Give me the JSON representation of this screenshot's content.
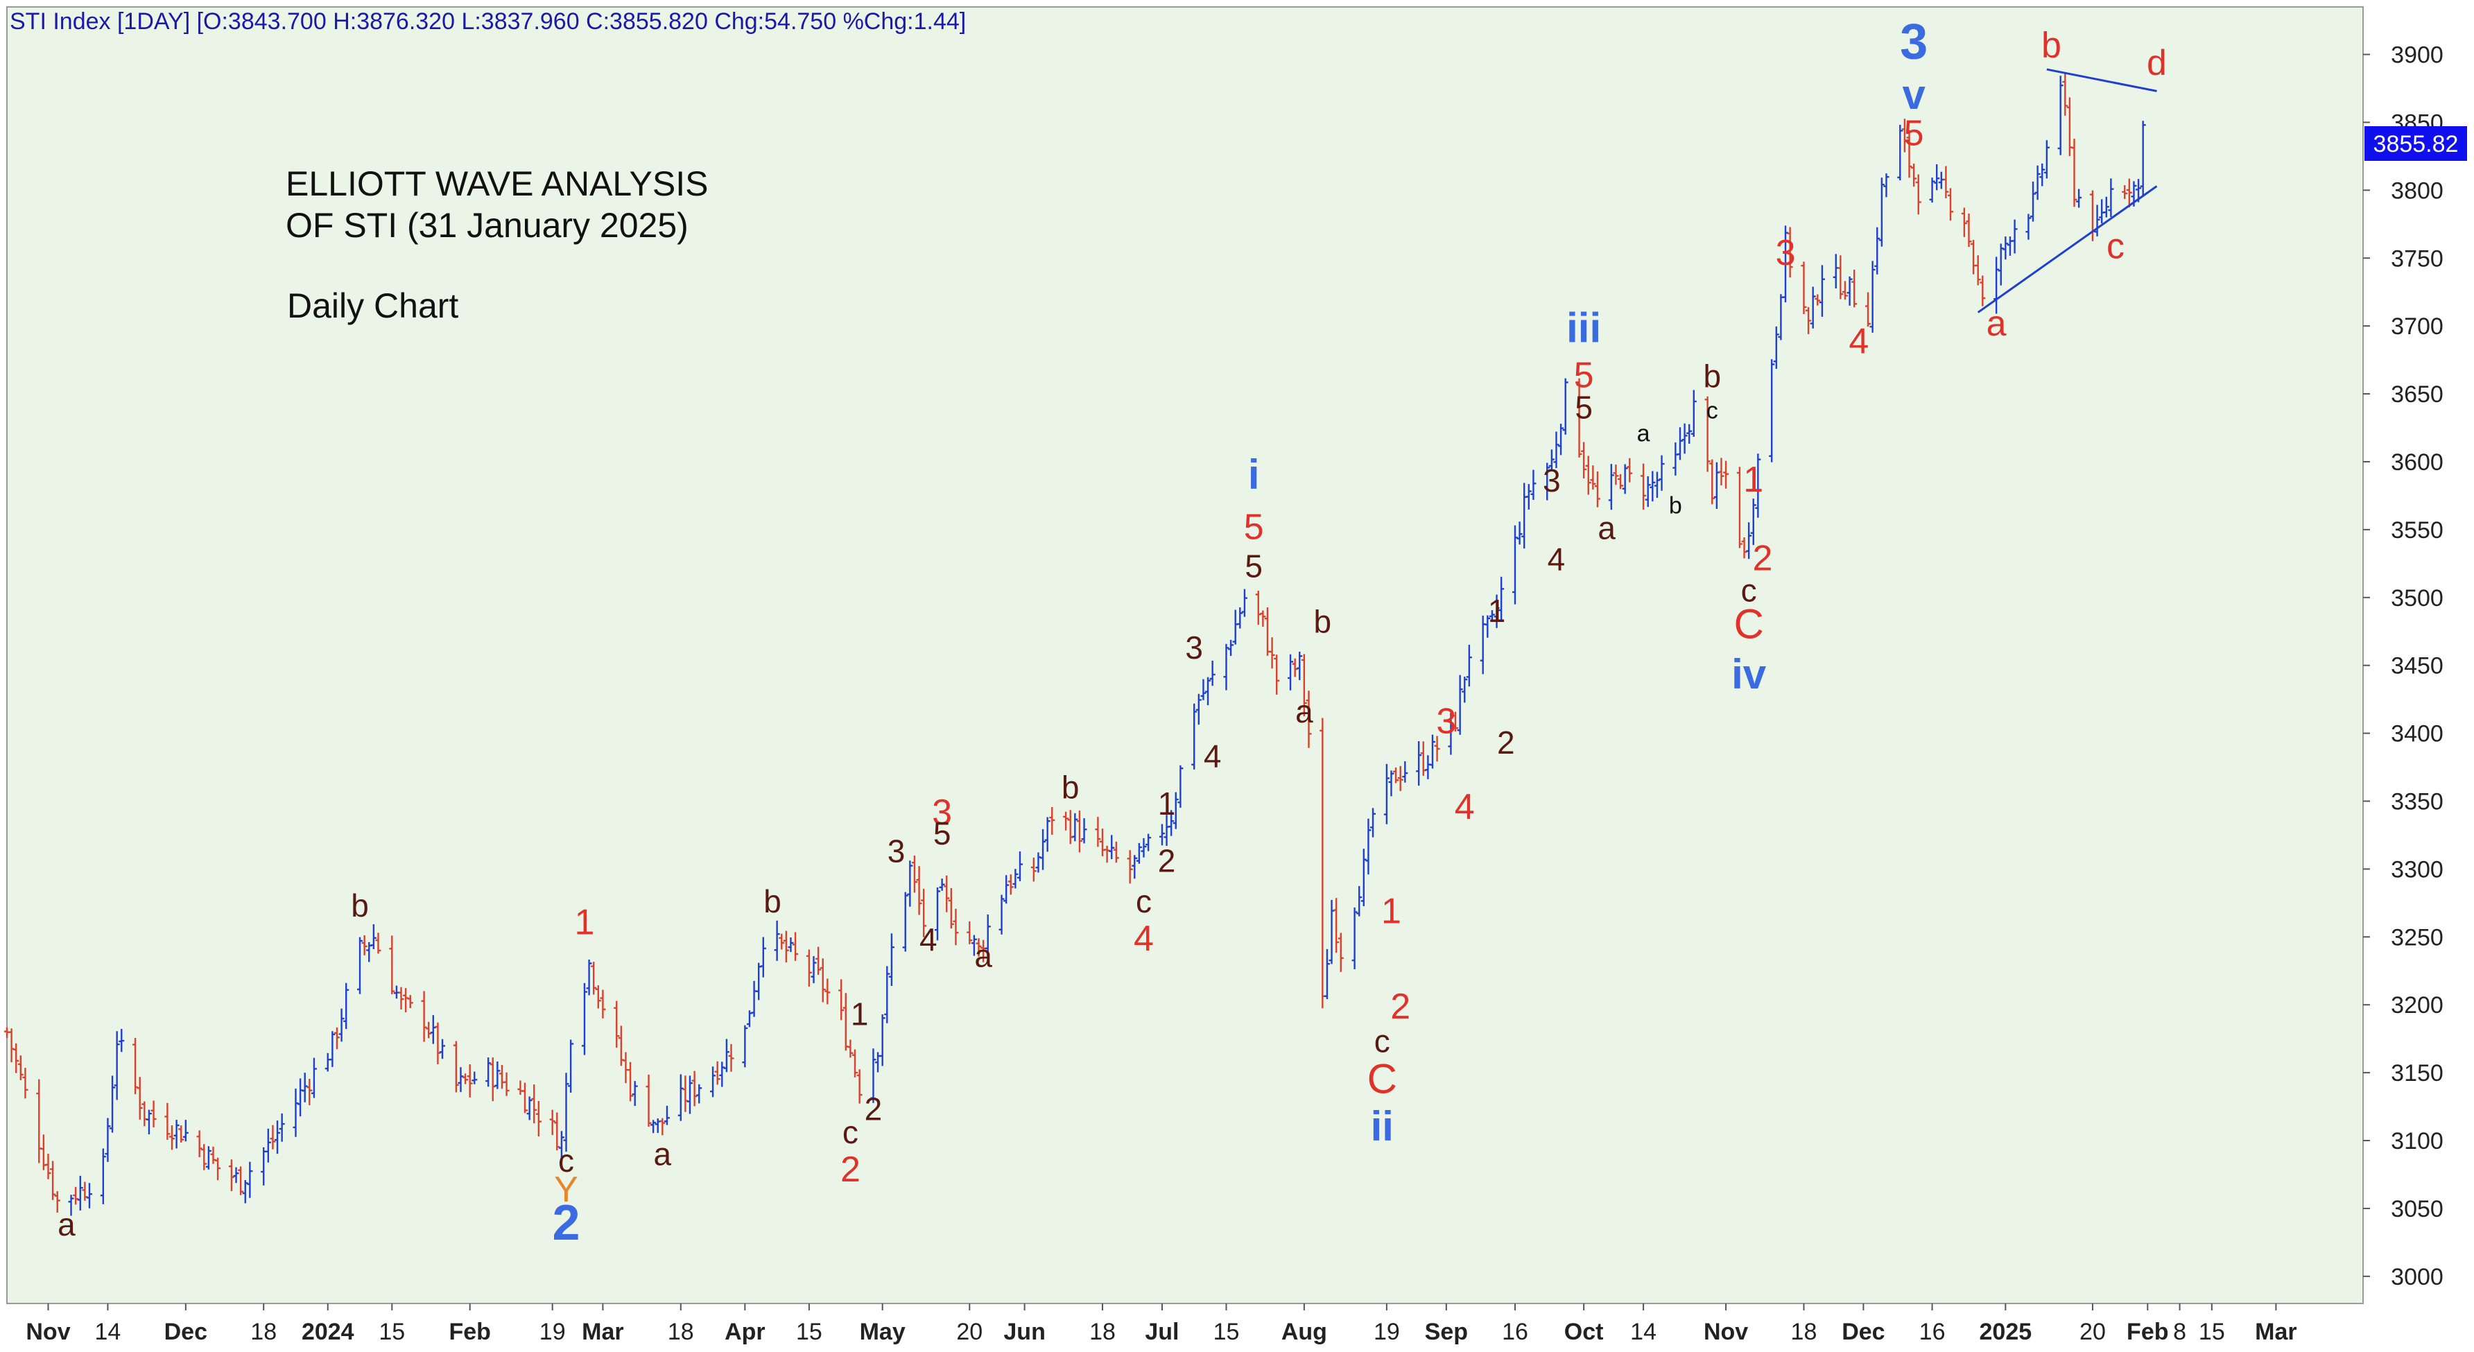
{
  "header": {
    "ohlc_text": "STI Index [1DAY] [O:3843.700 H:3876.320 L:3837.960 C:3855.820 Chg:54.750 %Chg:1.44]"
  },
  "annotation": {
    "line1": "ELLIOTT WAVE ANALYSIS",
    "line2": "OF STI (31 January 2025)",
    "line3": "Daily Chart"
  },
  "last_price_label": "3855.82",
  "colors": {
    "plot_bg": "#eaf5e7",
    "up_bar": "#1f3fd0",
    "down_bar": "#d9412f",
    "wave_blue": "#3a6be0",
    "wave_red": "#e0322a",
    "wave_brown": "#5a1a12",
    "wave_orange": "#e8862a",
    "trendline": "#1f3fd0",
    "price_tag_bg": "#1010ee"
  },
  "chart_data": {
    "type": "ohlc",
    "title": "STI Index [1DAY]",
    "ylim": [
      2980,
      3935
    ],
    "xlim": [
      "2023-10-23",
      "2025-03-20"
    ],
    "y_ticks": [
      3000,
      3050,
      3100,
      3150,
      3200,
      3250,
      3300,
      3350,
      3400,
      3450,
      3500,
      3550,
      3600,
      3650,
      3700,
      3750,
      3800,
      3850,
      3900
    ],
    "x_ticks": [
      {
        "date": "2023-11-01",
        "label": "Nov",
        "bold": true
      },
      {
        "date": "2023-11-14",
        "label": "14",
        "bold": false
      },
      {
        "date": "2023-12-01",
        "label": "Dec",
        "bold": true
      },
      {
        "date": "2023-12-18",
        "label": "18",
        "bold": false
      },
      {
        "date": "2024-01-01",
        "label": "2024",
        "bold": true
      },
      {
        "date": "2024-01-15",
        "label": "15",
        "bold": false
      },
      {
        "date": "2024-02-01",
        "label": "Feb",
        "bold": true
      },
      {
        "date": "2024-02-19",
        "label": "19",
        "bold": false
      },
      {
        "date": "2024-03-01",
        "label": "Mar",
        "bold": true
      },
      {
        "date": "2024-03-18",
        "label": "18",
        "bold": false
      },
      {
        "date": "2024-04-01",
        "label": "Apr",
        "bold": true
      },
      {
        "date": "2024-04-15",
        "label": "15",
        "bold": false
      },
      {
        "date": "2024-05-01",
        "label": "May",
        "bold": true
      },
      {
        "date": "2024-05-20",
        "label": "20",
        "bold": false
      },
      {
        "date": "2024-06-01",
        "label": "Jun",
        "bold": true
      },
      {
        "date": "2024-06-18",
        "label": "18",
        "bold": false
      },
      {
        "date": "2024-07-01",
        "label": "Jul",
        "bold": true
      },
      {
        "date": "2024-07-15",
        "label": "15",
        "bold": false
      },
      {
        "date": "2024-08-01",
        "label": "Aug",
        "bold": true
      },
      {
        "date": "2024-08-19",
        "label": "19",
        "bold": false
      },
      {
        "date": "2024-09-01",
        "label": "Sep",
        "bold": true
      },
      {
        "date": "2024-09-16",
        "label": "16",
        "bold": false
      },
      {
        "date": "2024-10-01",
        "label": "Oct",
        "bold": true
      },
      {
        "date": "2024-10-14",
        "label": "14",
        "bold": false
      },
      {
        "date": "2024-11-01",
        "label": "Nov",
        "bold": true
      },
      {
        "date": "2024-11-18",
        "label": "18",
        "bold": false
      },
      {
        "date": "2024-12-01",
        "label": "Dec",
        "bold": true
      },
      {
        "date": "2024-12-16",
        "label": "16",
        "bold": false
      },
      {
        "date": "2025-01-01",
        "label": "2025",
        "bold": true
      },
      {
        "date": "2025-01-20",
        "label": "20",
        "bold": false
      },
      {
        "date": "2025-02-01",
        "label": "Feb",
        "bold": true
      },
      {
        "date": "2025-02-08",
        "label": "8",
        "bold": false
      },
      {
        "date": "2025-02-15",
        "label": "15",
        "bold": false
      },
      {
        "date": "2025-03-01",
        "label": "Mar",
        "bold": true
      }
    ],
    "price_path": [
      [
        "2023-10-23",
        3180
      ],
      [
        "2023-10-30",
        3100
      ],
      [
        "2023-11-03",
        3055
      ],
      [
        "2023-11-09",
        3065
      ],
      [
        "2023-11-13",
        3080
      ],
      [
        "2023-11-16",
        3175
      ],
      [
        "2023-11-22",
        3120
      ],
      [
        "2023-12-01",
        3105
      ],
      [
        "2023-12-08",
        3080
      ],
      [
        "2023-12-13",
        3070
      ],
      [
        "2023-12-20",
        3100
      ],
      [
        "2023-12-27",
        3140
      ],
      [
        "2024-01-02",
        3170
      ],
      [
        "2024-01-08",
        3240
      ],
      [
        "2024-01-11",
        3250
      ],
      [
        "2024-01-17",
        3200
      ],
      [
        "2024-01-22",
        3190
      ],
      [
        "2024-01-29",
        3140
      ],
      [
        "2024-02-05",
        3150
      ],
      [
        "2024-02-12",
        3135
      ],
      [
        "2024-02-16",
        3120
      ],
      [
        "2024-02-21",
        3100
      ],
      [
        "2024-02-23",
        3180
      ],
      [
        "2024-02-27",
        3230
      ],
      [
        "2024-03-01",
        3200
      ],
      [
        "2024-03-07",
        3140
      ],
      [
        "2024-03-13",
        3110
      ],
      [
        "2024-03-18",
        3130
      ],
      [
        "2024-03-25",
        3150
      ],
      [
        "2024-04-01",
        3180
      ],
      [
        "2024-04-05",
        3250
      ],
      [
        "2024-04-10",
        3240
      ],
      [
        "2024-04-17",
        3220
      ],
      [
        "2024-04-22",
        3190
      ],
      [
        "2024-04-26",
        3140
      ],
      [
        "2024-04-30",
        3170
      ],
      [
        "2024-05-03",
        3240
      ],
      [
        "2024-05-07",
        3300
      ],
      [
        "2024-05-10",
        3260
      ],
      [
        "2024-05-14",
        3280
      ],
      [
        "2024-05-17",
        3260
      ],
      [
        "2024-05-22",
        3240
      ],
      [
        "2024-05-28",
        3290
      ],
      [
        "2024-06-03",
        3300
      ],
      [
        "2024-06-07",
        3340
      ],
      [
        "2024-06-12",
        3330
      ],
      [
        "2024-06-19",
        3310
      ],
      [
        "2024-06-24",
        3300
      ],
      [
        "2024-06-28",
        3315
      ],
      [
        "2024-07-03",
        3340
      ],
      [
        "2024-07-08",
        3420
      ],
      [
        "2024-07-12",
        3440
      ],
      [
        "2024-07-16",
        3470
      ],
      [
        "2024-07-19",
        3500
      ],
      [
        "2024-07-23",
        3480
      ],
      [
        "2024-07-26",
        3440
      ],
      [
        "2024-07-31",
        3450
      ],
      [
        "2024-08-02",
        3400
      ],
      [
        "2024-08-05",
        3200
      ],
      [
        "2024-08-07",
        3270
      ],
      [
        "2024-08-09",
        3240
      ],
      [
        "2024-08-14",
        3300
      ],
      [
        "2024-08-16",
        3340
      ],
      [
        "2024-08-21",
        3370
      ],
      [
        "2024-08-27",
        3380
      ],
      [
        "2024-08-30",
        3390
      ],
      [
        "2024-09-03",
        3410
      ],
      [
        "2024-09-06",
        3460
      ],
      [
        "2024-09-11",
        3480
      ],
      [
        "2024-09-16",
        3540
      ],
      [
        "2024-09-19",
        3580
      ],
      [
        "2024-09-24",
        3600
      ],
      [
        "2024-09-27",
        3650
      ],
      [
        "2024-10-01",
        3600
      ],
      [
        "2024-10-04",
        3570
      ],
      [
        "2024-10-09",
        3590
      ],
      [
        "2024-10-15",
        3580
      ],
      [
        "2024-10-21",
        3600
      ],
      [
        "2024-10-25",
        3640
      ],
      [
        "2024-10-29",
        3580
      ],
      [
        "2024-11-01",
        3590
      ],
      [
        "2024-11-05",
        3530
      ],
      [
        "2024-11-08",
        3600
      ],
      [
        "2024-11-12",
        3700
      ],
      [
        "2024-11-14",
        3760
      ],
      [
        "2024-11-19",
        3700
      ],
      [
        "2024-11-22",
        3740
      ],
      [
        "2024-11-27",
        3730
      ],
      [
        "2024-12-02",
        3710
      ],
      [
        "2024-12-05",
        3800
      ],
      [
        "2024-12-09",
        3840
      ],
      [
        "2024-12-13",
        3800
      ],
      [
        "2024-12-18",
        3800
      ],
      [
        "2024-12-23",
        3780
      ],
      [
        "2024-12-27",
        3715
      ],
      [
        "2025-01-02",
        3770
      ],
      [
        "2025-01-07",
        3790
      ],
      [
        "2025-01-10",
        3830
      ],
      [
        "2025-01-13",
        3880
      ],
      [
        "2025-01-16",
        3800
      ],
      [
        "2025-01-21",
        3770
      ],
      [
        "2025-01-24",
        3800
      ],
      [
        "2025-01-28",
        3805
      ],
      [
        "2025-01-30",
        3800
      ],
      [
        "2025-01-31",
        3856
      ]
    ],
    "trendlines": [
      {
        "from": [
          "2025-01-10",
          3889
        ],
        "to": [
          "2025-02-03",
          3873
        ]
      },
      {
        "from": [
          "2024-12-26",
          3710
        ],
        "to": [
          "2025-02-03",
          3803
        ]
      }
    ],
    "wave_labels": [
      {
        "text": "a",
        "date": "2023-11-05",
        "price": 3030,
        "color": "brown",
        "size": 46
      },
      {
        "text": "b",
        "date": "2024-01-08",
        "price": 3265,
        "color": "brown",
        "size": 46
      },
      {
        "text": "c",
        "date": "2024-02-22",
        "price": 3077,
        "color": "brown",
        "size": 46
      },
      {
        "text": "Y",
        "date": "2024-02-22",
        "price": 3055,
        "color": "orange",
        "size": 52
      },
      {
        "text": "2",
        "date": "2024-02-22",
        "price": 3027,
        "color": "blue",
        "size": 72,
        "bold": true
      },
      {
        "text": "1",
        "date": "2024-02-26",
        "price": 3252,
        "color": "red",
        "size": 52
      },
      {
        "text": "a",
        "date": "2024-03-14",
        "price": 3082,
        "color": "brown",
        "size": 46
      },
      {
        "text": "b",
        "date": "2024-04-07",
        "price": 3268,
        "color": "brown",
        "size": 46
      },
      {
        "text": "1",
        "date": "2024-04-26",
        "price": 3185,
        "color": "brown",
        "size": 46
      },
      {
        "text": "2",
        "date": "2024-04-29",
        "price": 3115,
        "color": "brown",
        "size": 46
      },
      {
        "text": "c",
        "date": "2024-04-24",
        "price": 3098,
        "color": "brown",
        "size": 46
      },
      {
        "text": "2",
        "date": "2024-04-24",
        "price": 3070,
        "color": "red",
        "size": 52
      },
      {
        "text": "3",
        "date": "2024-05-04",
        "price": 3305,
        "color": "brown",
        "size": 46
      },
      {
        "text": "4",
        "date": "2024-05-11",
        "price": 3240,
        "color": "brown",
        "size": 46
      },
      {
        "text": "3",
        "date": "2024-05-14",
        "price": 3333,
        "color": "red",
        "size": 52
      },
      {
        "text": "5",
        "date": "2024-05-14",
        "price": 3318,
        "color": "brown",
        "size": 46
      },
      {
        "text": "a",
        "date": "2024-05-23",
        "price": 3228,
        "color": "brown",
        "size": 46
      },
      {
        "text": "b",
        "date": "2024-06-11",
        "price": 3352,
        "color": "brown",
        "size": 46
      },
      {
        "text": "c",
        "date": "2024-06-27",
        "price": 3268,
        "color": "brown",
        "size": 46
      },
      {
        "text": "4",
        "date": "2024-06-27",
        "price": 3240,
        "color": "red",
        "size": 52
      },
      {
        "text": "1",
        "date": "2024-07-02",
        "price": 3340,
        "color": "brown",
        "size": 46
      },
      {
        "text": "2",
        "date": "2024-07-02",
        "price": 3298,
        "color": "brown",
        "size": 46
      },
      {
        "text": "3",
        "date": "2024-07-08",
        "price": 3455,
        "color": "brown",
        "size": 46
      },
      {
        "text": "4",
        "date": "2024-07-12",
        "price": 3375,
        "color": "brown",
        "size": 46
      },
      {
        "text": "i",
        "date": "2024-07-21",
        "price": 3580,
        "color": "blue",
        "size": 60,
        "bold": true
      },
      {
        "text": "5",
        "date": "2024-07-21",
        "price": 3543,
        "color": "red",
        "size": 52
      },
      {
        "text": "5",
        "date": "2024-07-21",
        "price": 3515,
        "color": "brown",
        "size": 46
      },
      {
        "text": "a",
        "date": "2024-08-01",
        "price": 3408,
        "color": "brown",
        "size": 46
      },
      {
        "text": "b",
        "date": "2024-08-05",
        "price": 3474,
        "color": "brown",
        "size": 46
      },
      {
        "text": "c",
        "date": "2024-08-18",
        "price": 3165,
        "color": "brown",
        "size": 46
      },
      {
        "text": "C",
        "date": "2024-08-18",
        "price": 3135,
        "color": "red",
        "size": 60
      },
      {
        "text": "ii",
        "date": "2024-08-18",
        "price": 3100,
        "color": "blue",
        "size": 60,
        "bold": true
      },
      {
        "text": "1",
        "date": "2024-08-20",
        "price": 3260,
        "color": "red",
        "size": 52
      },
      {
        "text": "2",
        "date": "2024-08-22",
        "price": 3190,
        "color": "red",
        "size": 52
      },
      {
        "text": "3",
        "date": "2024-09-01",
        "price": 3400,
        "color": "red",
        "size": 52
      },
      {
        "text": "4",
        "date": "2024-09-05",
        "price": 3337,
        "color": "red",
        "size": 52
      },
      {
        "text": "1",
        "date": "2024-09-12",
        "price": 3482,
        "color": "brown",
        "size": 46
      },
      {
        "text": "2",
        "date": "2024-09-14",
        "price": 3385,
        "color": "brown",
        "size": 46
      },
      {
        "text": "3",
        "date": "2024-09-24",
        "price": 3578,
        "color": "brown",
        "size": 46
      },
      {
        "text": "4",
        "date": "2024-09-25",
        "price": 3520,
        "color": "brown",
        "size": 46
      },
      {
        "text": "iii",
        "date": "2024-10-01",
        "price": 3688,
        "color": "blue",
        "size": 60,
        "bold": true
      },
      {
        "text": "5",
        "date": "2024-10-01",
        "price": 3655,
        "color": "red",
        "size": 52
      },
      {
        "text": "5",
        "date": "2024-10-01",
        "price": 3632,
        "color": "brown",
        "size": 46
      },
      {
        "text": "a",
        "date": "2024-10-06",
        "price": 3543,
        "color": "brown",
        "size": 46
      },
      {
        "text": "a",
        "date": "2024-10-14",
        "price": 3615,
        "color": "black",
        "size": 34
      },
      {
        "text": "b",
        "date": "2024-10-21",
        "price": 3562,
        "color": "black",
        "size": 34
      },
      {
        "text": "b",
        "date": "2024-10-29",
        "price": 3655,
        "color": "brown",
        "size": 46
      },
      {
        "text": "c",
        "date": "2024-10-29",
        "price": 3632,
        "color": "black",
        "size": 34
      },
      {
        "text": "1",
        "date": "2024-11-07",
        "price": 3578,
        "color": "red",
        "size": 52
      },
      {
        "text": "2",
        "date": "2024-11-09",
        "price": 3520,
        "color": "red",
        "size": 52
      },
      {
        "text": "c",
        "date": "2024-11-06",
        "price": 3497,
        "color": "brown",
        "size": 46
      },
      {
        "text": "C",
        "date": "2024-11-06",
        "price": 3470,
        "color": "red",
        "size": 60
      },
      {
        "text": "iv",
        "date": "2024-11-06",
        "price": 3433,
        "color": "blue",
        "size": 60,
        "bold": true
      },
      {
        "text": "3",
        "date": "2024-11-14",
        "price": 3745,
        "color": "red",
        "size": 52
      },
      {
        "text": "4",
        "date": "2024-11-30",
        "price": 3680,
        "color": "red",
        "size": 52
      },
      {
        "text": "3",
        "date": "2024-12-12",
        "price": 3897,
        "color": "blue",
        "size": 72,
        "bold": true
      },
      {
        "text": "v",
        "date": "2024-12-12",
        "price": 3860,
        "color": "blue",
        "size": 60,
        "bold": true
      },
      {
        "text": "5",
        "date": "2024-12-12",
        "price": 3833,
        "color": "red",
        "size": 52
      },
      {
        "text": "a",
        "date": "2024-12-30",
        "price": 3693,
        "color": "red",
        "size": 52
      },
      {
        "text": "b",
        "date": "2025-01-11",
        "price": 3898,
        "color": "red",
        "size": 52
      },
      {
        "text": "c",
        "date": "2025-01-25",
        "price": 3750,
        "color": "red",
        "size": 52
      },
      {
        "text": "d",
        "date": "2025-02-03",
        "price": 3885,
        "color": "red",
        "size": 52
      }
    ]
  }
}
